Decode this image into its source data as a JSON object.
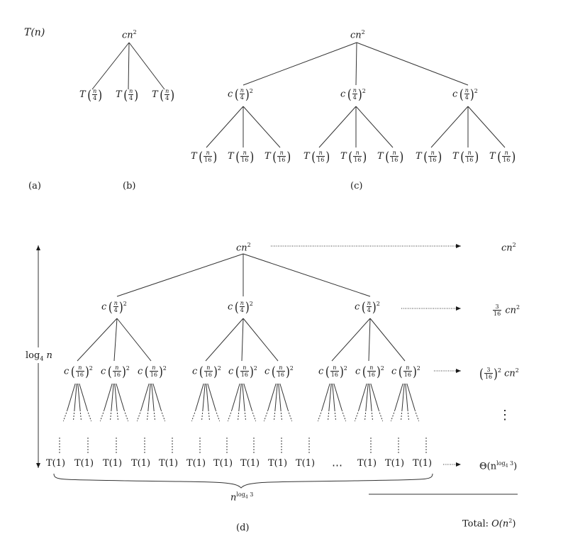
{
  "panels": {
    "a": {
      "caption": "(a)",
      "root": "T(n)"
    },
    "b": {
      "caption": "(b)",
      "root_coef": "cn",
      "root_exp": "2",
      "child_fn": "T",
      "child_num": "n",
      "child_den": "4"
    },
    "c": {
      "caption": "(c)",
      "root_coef": "cn",
      "root_exp": "2",
      "mid_coef": "c",
      "mid_num": "n",
      "mid_den": "4",
      "mid_exp": "2",
      "leaf_fn": "T",
      "leaf_num": "n",
      "leaf_den": "16"
    },
    "d": {
      "caption": "(d)",
      "root_coef": "cn",
      "root_exp": "2",
      "level1_coef": "c",
      "level1_num": "n",
      "level1_den": "4",
      "level1_exp": "2",
      "level2_coef": "c",
      "level2_num": "n",
      "level2_den": "16",
      "level2_exp": "2",
      "leaf": "T(1)",
      "ellipsis": "⋯",
      "height_label_base": "log",
      "height_label_sub": "4",
      "height_label_arg": "n",
      "leafcount_base": "n",
      "leafcount_exp": "log",
      "leafcount_exp_sub": "4",
      "leafcount_exp_arg": "3",
      "cost_row0_coef": "cn",
      "cost_row0_exp": "2",
      "cost_row1_num": "3",
      "cost_row1_den": "16",
      "cost_row1_tail": "cn",
      "cost_row1_exp": "2",
      "cost_row2_num": "3",
      "cost_row2_den": "16",
      "cost_row2_pow": "2",
      "cost_row2_tail": "cn",
      "cost_row2_exp": "2",
      "cost_vdots": "⋮",
      "cost_leaf_prefix": "Θ(n",
      "cost_leaf_exp": "log",
      "cost_leaf_exp_sub": "4",
      "cost_leaf_exp_arg": "3",
      "cost_leaf_suffix": ")",
      "total_prefix": "Total: ",
      "total_value": "O(n",
      "total_exp": "2",
      "total_suffix": ")"
    }
  }
}
